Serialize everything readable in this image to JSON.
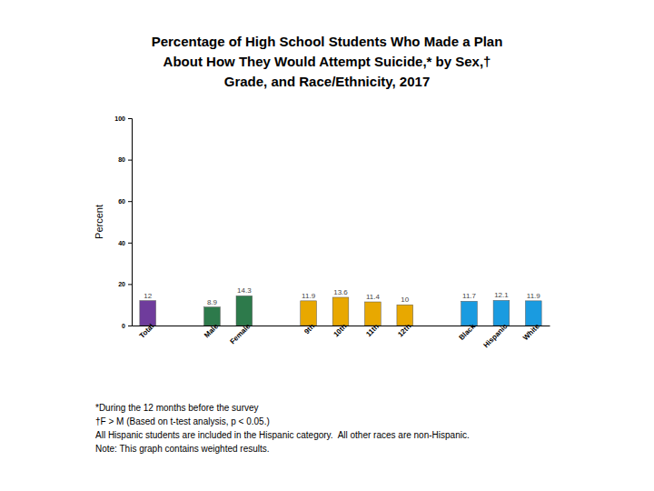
{
  "chart_data": {
    "type": "bar",
    "title": [
      "Percentage of High School Students Who Made a Plan",
      "About How They Would Attempt Suicide,* by Sex,†",
      "Grade, and Race/Ethnicity, 2017"
    ],
    "y_label": "Percent",
    "categories": [
      "Total",
      null,
      "Male",
      "Female",
      null,
      "9th",
      "10th",
      "11th",
      "12th",
      null,
      "Black",
      "Hispanic",
      "White"
    ],
    "values": [
      12,
      null,
      8.9,
      14.3,
      null,
      11.9,
      13.6,
      11.4,
      10,
      null,
      11.7,
      12.1,
      11.9
    ],
    "colors": [
      "#6f3c9c",
      null,
      "#2d7a4b",
      "#2d7a4b",
      null,
      "#e8a800",
      "#e8a800",
      "#e8a800",
      "#e8a800",
      null,
      "#1a9be0",
      "#1a9be0",
      "#1a9be0"
    ],
    "ylim": [
      0,
      100
    ],
    "yticks": [
      0,
      20,
      40,
      60,
      80,
      100
    ],
    "grid": false,
    "data_labels": true,
    "notes": [
      "*During the 12 months before the survey",
      "†F > M (Based on t-test analysis, p < 0.05.)",
      "All Hispanic students are included in the Hispanic category.  All other races are non-Hispanic.",
      "Note: This graph contains weighted results."
    ]
  }
}
